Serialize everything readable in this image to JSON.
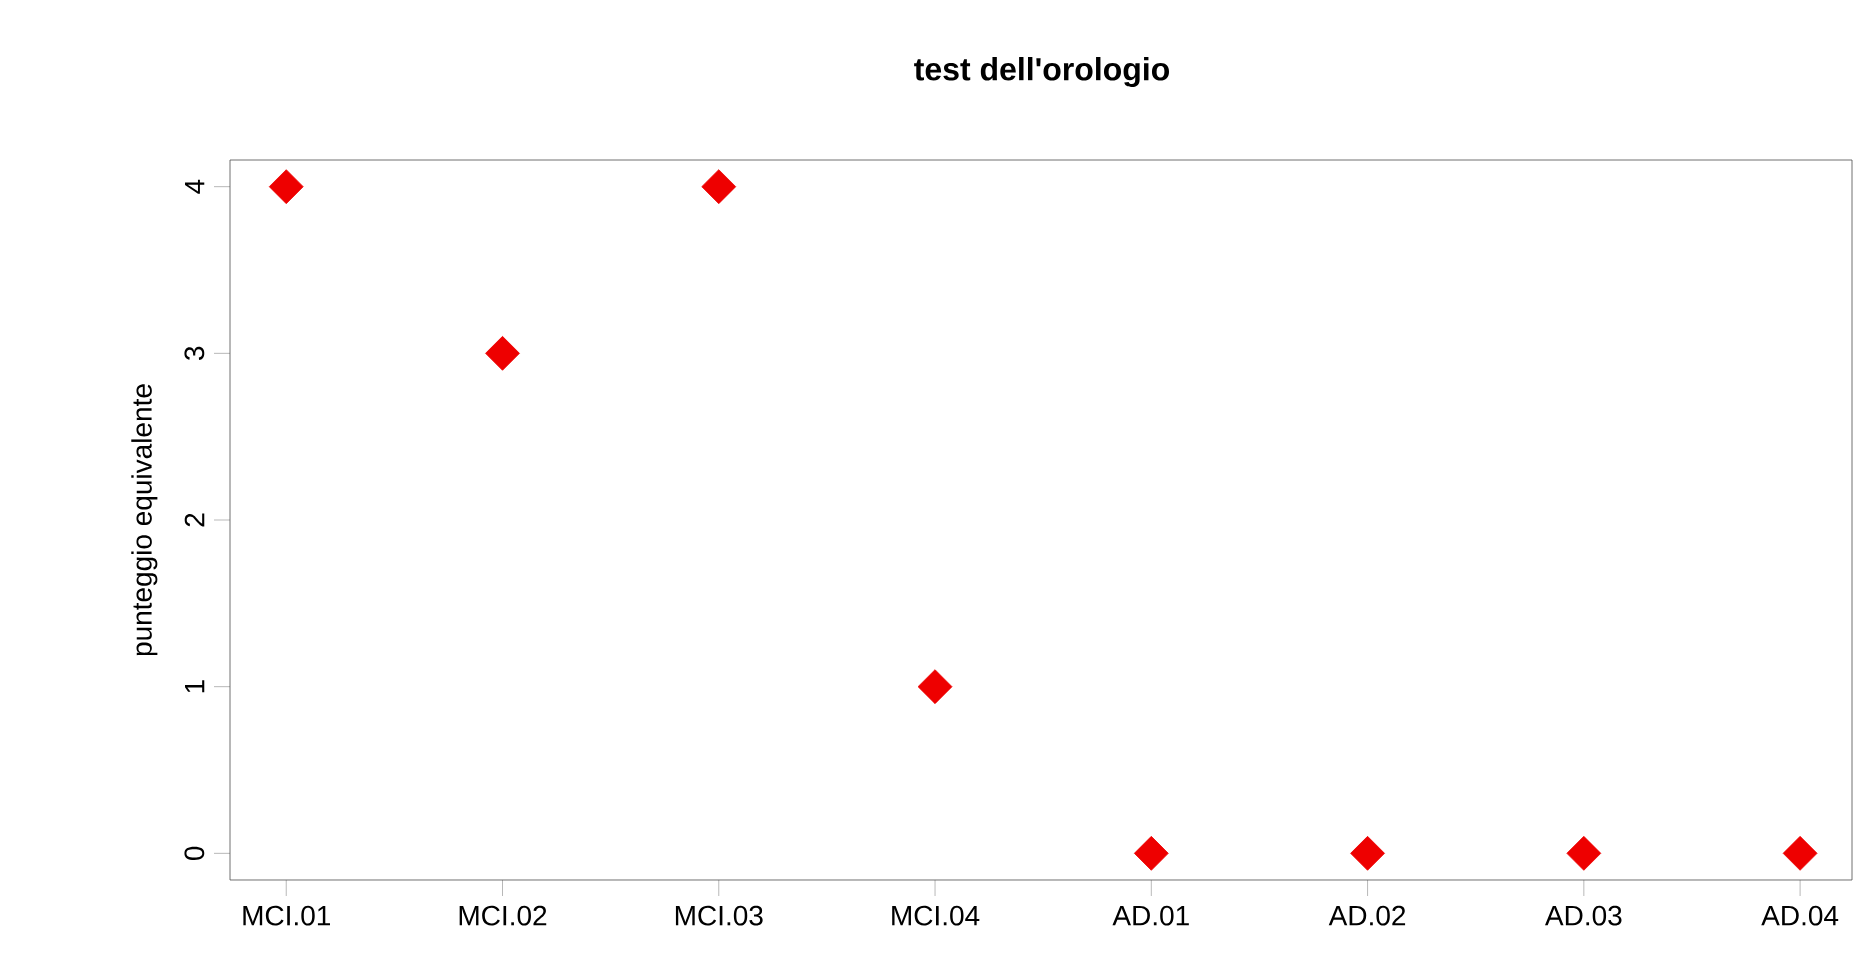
{
  "chart_data": {
    "type": "scatter",
    "title": "test dell'orologio",
    "ylabel": "punteggio equivalente",
    "categories": [
      "MCI.01",
      "MCI.02",
      "MCI.03",
      "MCI.04",
      "AD.01",
      "AD.02",
      "AD.03",
      "AD.04"
    ],
    "values": [
      4,
      3,
      4,
      1,
      0,
      0,
      0,
      0
    ],
    "color": "#ee0000",
    "marker": "diamond",
    "ylim": [
      -0.16,
      4.16
    ],
    "yticks": [
      0,
      1,
      2,
      3,
      4
    ],
    "grid": false
  }
}
